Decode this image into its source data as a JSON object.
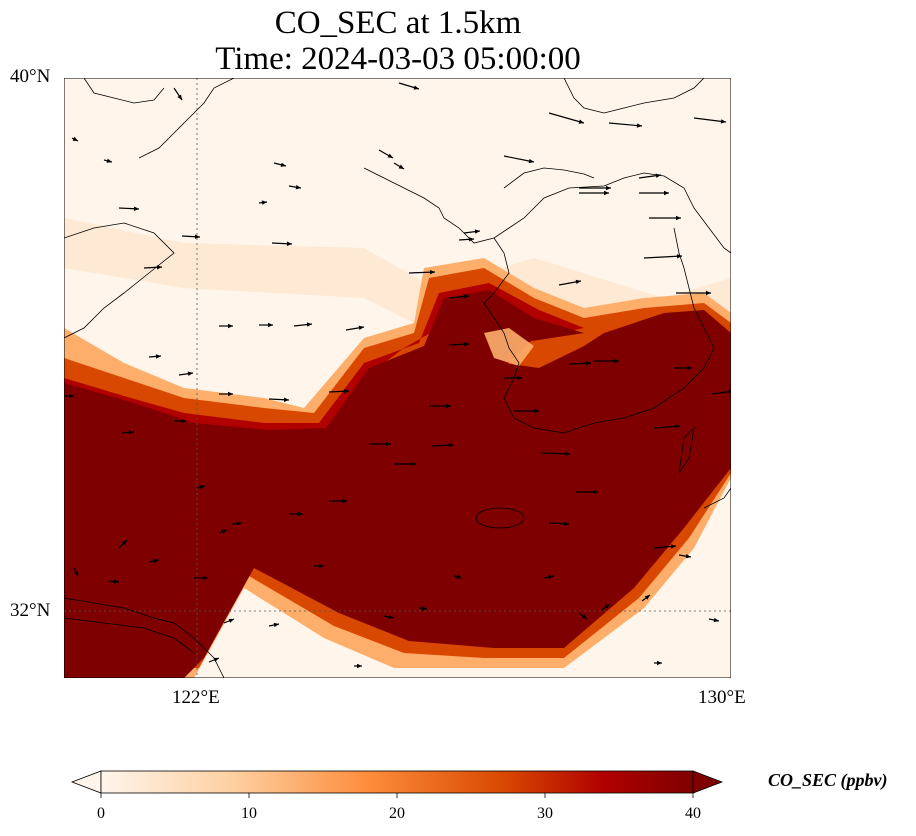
{
  "title_line1": "CO_SEC at 1.5km",
  "title_line2": "Time: 2024-03-03 05:00:00",
  "lat_labels": [
    "40°N",
    "32°N"
  ],
  "lon_labels": [
    "122°E",
    "130°E"
  ],
  "colorbar": {
    "label": "CO_SEC (ppbv)",
    "ticks": [
      "0",
      "10",
      "20",
      "30",
      "40"
    ],
    "colors": [
      "#fff5eb",
      "#fdd0a2",
      "#fd8d3c",
      "#d94801",
      "#b00000",
      "#7f0000"
    ]
  },
  "colors": {
    "background_low": "#fff5eb",
    "plume": "#7f0000",
    "coast": "#000000"
  }
}
